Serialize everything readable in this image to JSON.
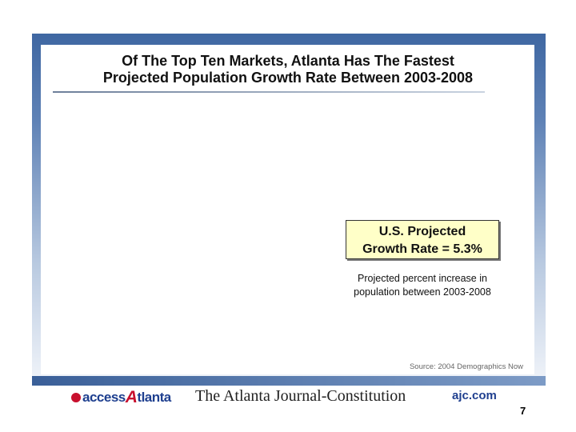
{
  "slide": {
    "title_line1": "Of The Top Ten Markets, Atlanta Has The Fastest",
    "title_line2": "Projected Population Growth Rate Between 2003-2008",
    "callout_line1": "U.S. Projected",
    "callout_line2": "Growth Rate = 5.3%",
    "note_line1": "Projected percent increase in",
    "note_line2": "population between 2003-2008",
    "source": "Source: 2004 Demographics Now",
    "page_number": "7"
  },
  "footer": {
    "access_prefix": "access",
    "access_letter": "A",
    "access_suffix": "tlanta",
    "newspaper": "The Atlanta Journal-Constitution",
    "website": "ajc.com"
  },
  "colors": {
    "frame_blue": "#3f67a2",
    "callout_fill": "#ffffc8",
    "brand_red": "#c8102e",
    "brand_blue": "#1e3f8f"
  }
}
